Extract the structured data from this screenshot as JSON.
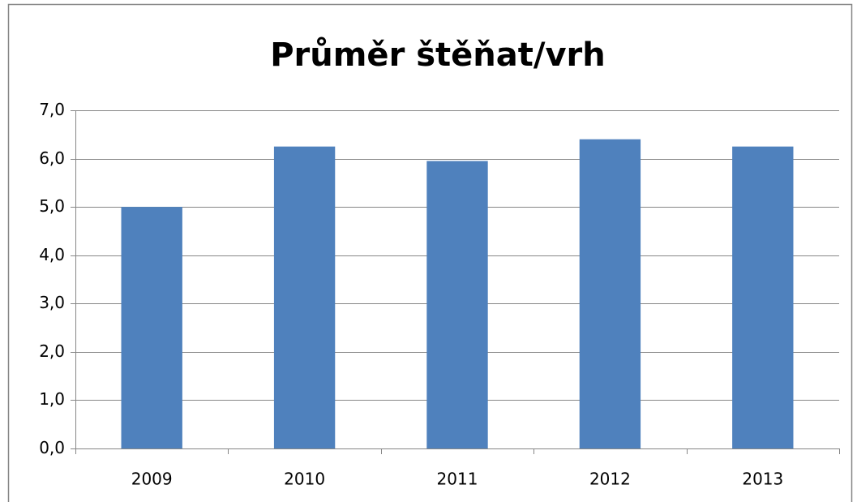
{
  "chart_data": {
    "type": "bar",
    "title": "Průměr štěňat/vrh",
    "categories": [
      "2009",
      "2010",
      "2011",
      "2012",
      "2013"
    ],
    "values": [
      5.0,
      6.25,
      5.95,
      6.4,
      6.25
    ],
    "color": "#4f81bd",
    "ylim": [
      0,
      7
    ],
    "yticks": [
      {
        "value": 0,
        "label": "0,0"
      },
      {
        "value": 1,
        "label": "1,0"
      },
      {
        "value": 2,
        "label": "2,0"
      },
      {
        "value": 3,
        "label": "3,0"
      },
      {
        "value": 4,
        "label": "4,0"
      },
      {
        "value": 5,
        "label": "5,0"
      },
      {
        "value": 6,
        "label": "6,0"
      },
      {
        "value": 7,
        "label": "7,0"
      }
    ],
    "grid": true
  }
}
